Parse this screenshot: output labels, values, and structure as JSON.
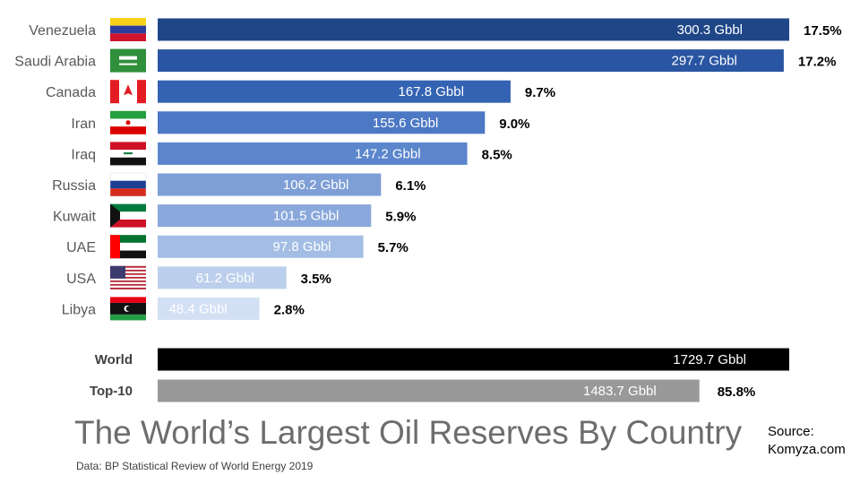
{
  "chart_data": {
    "type": "bar",
    "orientation": "horizontal",
    "title": "The World’s Largest Oil Reserves By Country",
    "unit": "Gbbl",
    "categories": [
      "Venezuela",
      "Saudi Arabia",
      "Canada",
      "Iran",
      "Iraq",
      "Russia",
      "Kuwait",
      "UAE",
      "USA",
      "Libya"
    ],
    "values": [
      300.3,
      297.7,
      167.8,
      155.6,
      147.2,
      106.2,
      101.5,
      97.8,
      61.2,
      48.4
    ],
    "value_labels": [
      "300.3  Gbbl",
      "297.7  Gbbl",
      "167.8  Gbbl",
      "155.6  Gbbl",
      "147.2  Gbbl",
      "106.2  Gbbl",
      "101.5  Gbbl",
      "97.8  Gbbl",
      "61.2  Gbbl",
      "48.4  Gbbl"
    ],
    "shares": [
      "17.5%",
      "17.2%",
      "9.7%",
      "9.0%",
      "8.5%",
      "6.1%",
      "5.9%",
      "5.7%",
      "3.5%",
      "2.8%"
    ],
    "bar_colors": [
      "#1f4788",
      "#2a55a2",
      "#3563b3",
      "#4c78c4",
      "#5b86cc",
      "#7e9ed6",
      "#8aa8db",
      "#a3bde4",
      "#bccfec",
      "#d3e0f4"
    ],
    "flags": [
      "venezuela-flag",
      "saudi-arabia-flag",
      "canada-flag",
      "iran-flag",
      "iraq-flag",
      "russia-flag",
      "kuwait-flag",
      "uae-flag",
      "usa-flag",
      "libya-flag"
    ],
    "totals": [
      {
        "label": "World",
        "value": 1729.7,
        "value_label": "1729.7  Gbbl",
        "share": "",
        "color": "#000000"
      },
      {
        "label": "Top-10",
        "value": 1483.7,
        "value_label": "1483.7  Gbbl",
        "share": "85.8%",
        "color": "#999999"
      }
    ],
    "xlim": [
      0,
      1729.7
    ],
    "grid": false,
    "legend": "none"
  },
  "footer": {
    "data_source": "Data: BP Statistical Review of World Energy 2019",
    "source_line1": "Source:",
    "source_line2": "Komyza.com"
  }
}
